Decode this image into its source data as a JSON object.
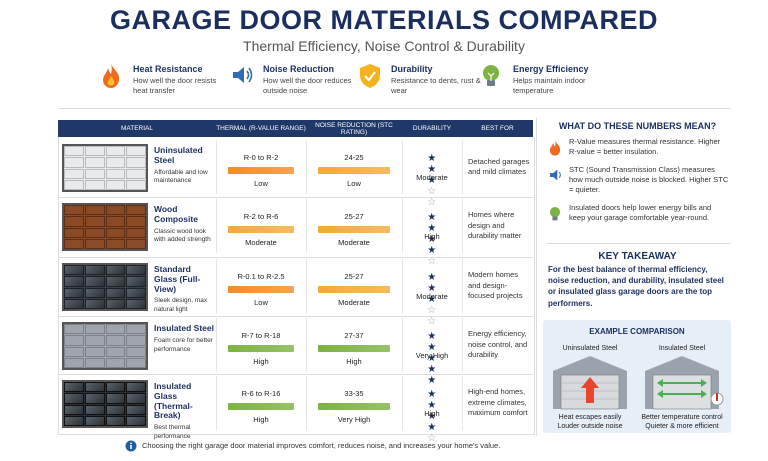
{
  "header": {
    "title": "GARAGE DOOR MATERIALS COMPARED",
    "subtitle": "Thermal Efficiency, Noise Control & Durability"
  },
  "legend": [
    {
      "title": "Heat Resistance",
      "text": "How well the door resists heat transfer"
    },
    {
      "title": "Noise Reduction",
      "text": "How well the door reduces outside noise"
    },
    {
      "title": "Durability",
      "text": "Resistance to dents, rust & wear"
    },
    {
      "title": "Energy Efficiency",
      "text": "Helps maintain indoor temperature"
    }
  ],
  "table": {
    "headers": [
      "MATERIAL",
      "THERMAL (R-VALUE RANGE)",
      "NOISE REDUCTION (STC RATING)",
      "DURABILITY",
      "BEST FOR"
    ],
    "rows": [
      {
        "name": "Uninsulated Steel",
        "description": "Affordable and low maintenance",
        "thermal": {
          "range": "R-0 to R-2",
          "rating": "Low",
          "color": "#f28c28"
        },
        "noise": {
          "range": "24-25",
          "rating": "Low",
          "color": "#f5a83a"
        },
        "durability": {
          "stars": 3,
          "rating": "Moderate"
        },
        "best_for": "Detached garages and mild climates"
      },
      {
        "name": "Wood Composite",
        "description": "Classic wood look with added strength",
        "thermal": {
          "range": "R-2 to R-6",
          "rating": "Moderate",
          "color": "#f5a83a"
        },
        "noise": {
          "range": "25-27",
          "rating": "Moderate",
          "color": "#f5a83a"
        },
        "durability": {
          "stars": 4,
          "rating": "High"
        },
        "best_for": "Homes where design and durability matter"
      },
      {
        "name": "Standard Glass (Full-View)",
        "description": "Sleek design, max natural light",
        "thermal": {
          "range": "R-0.1 to R-2.5",
          "rating": "Low",
          "color": "#f28c28"
        },
        "noise": {
          "range": "25-27",
          "rating": "Moderate",
          "color": "#f5a83a"
        },
        "durability": {
          "stars": 3,
          "rating": "Moderate"
        },
        "best_for": "Modern homes and design-focused projects"
      },
      {
        "name": "Insulated Steel",
        "description": "Foam core for better performance",
        "thermal": {
          "range": "R-7 to R-18",
          "rating": "High",
          "color": "#7cb342"
        },
        "noise": {
          "range": "27-37",
          "rating": "High",
          "color": "#7cb342"
        },
        "durability": {
          "stars": 5,
          "rating": "Very High"
        },
        "best_for": "Energy efficiency, noise control, and durability"
      },
      {
        "name": "Insulated Glass (Thermal-Break)",
        "description": "Best thermal performance",
        "thermal": {
          "range": "R-6 to R-16",
          "rating": "High",
          "color": "#7cb342"
        },
        "noise": {
          "range": "33-35",
          "rating": "Very High",
          "color": "#7cb342"
        },
        "durability": {
          "stars": 4,
          "rating": "High"
        },
        "best_for": "High-end homes, extreme climates, maximum comfort"
      }
    ]
  },
  "footer": "Choosing the right garage door material improves comfort, reduces noise, and increases your home's value.",
  "sidebar": {
    "heading": "WHAT DO THESE NUMBERS MEAN?",
    "items": [
      "R-Value measures thermal resistance. Higher R-value = better insulation.",
      "STC (Sound Transmission Class) measures how much outside noise is blocked. Higher STC = quieter.",
      "Insulated doors help lower energy bills and keep your garage comfortable year-round."
    ],
    "takeaway": {
      "heading": "KEY TAKEAWAY",
      "text": "For the best balance of thermal efficiency, noise reduction, and durability, insulated steel or insulated glass garage doors are the top performers."
    },
    "example": {
      "heading": "EXAMPLE COMPARISON",
      "left": {
        "label": "Uninsulated Steel",
        "caption": [
          "Heat escapes easily",
          "Louder outside noise"
        ]
      },
      "right": {
        "label": "Insulated Steel",
        "caption": [
          "Better temperature control",
          "Quieter & more efficient"
        ]
      }
    }
  }
}
